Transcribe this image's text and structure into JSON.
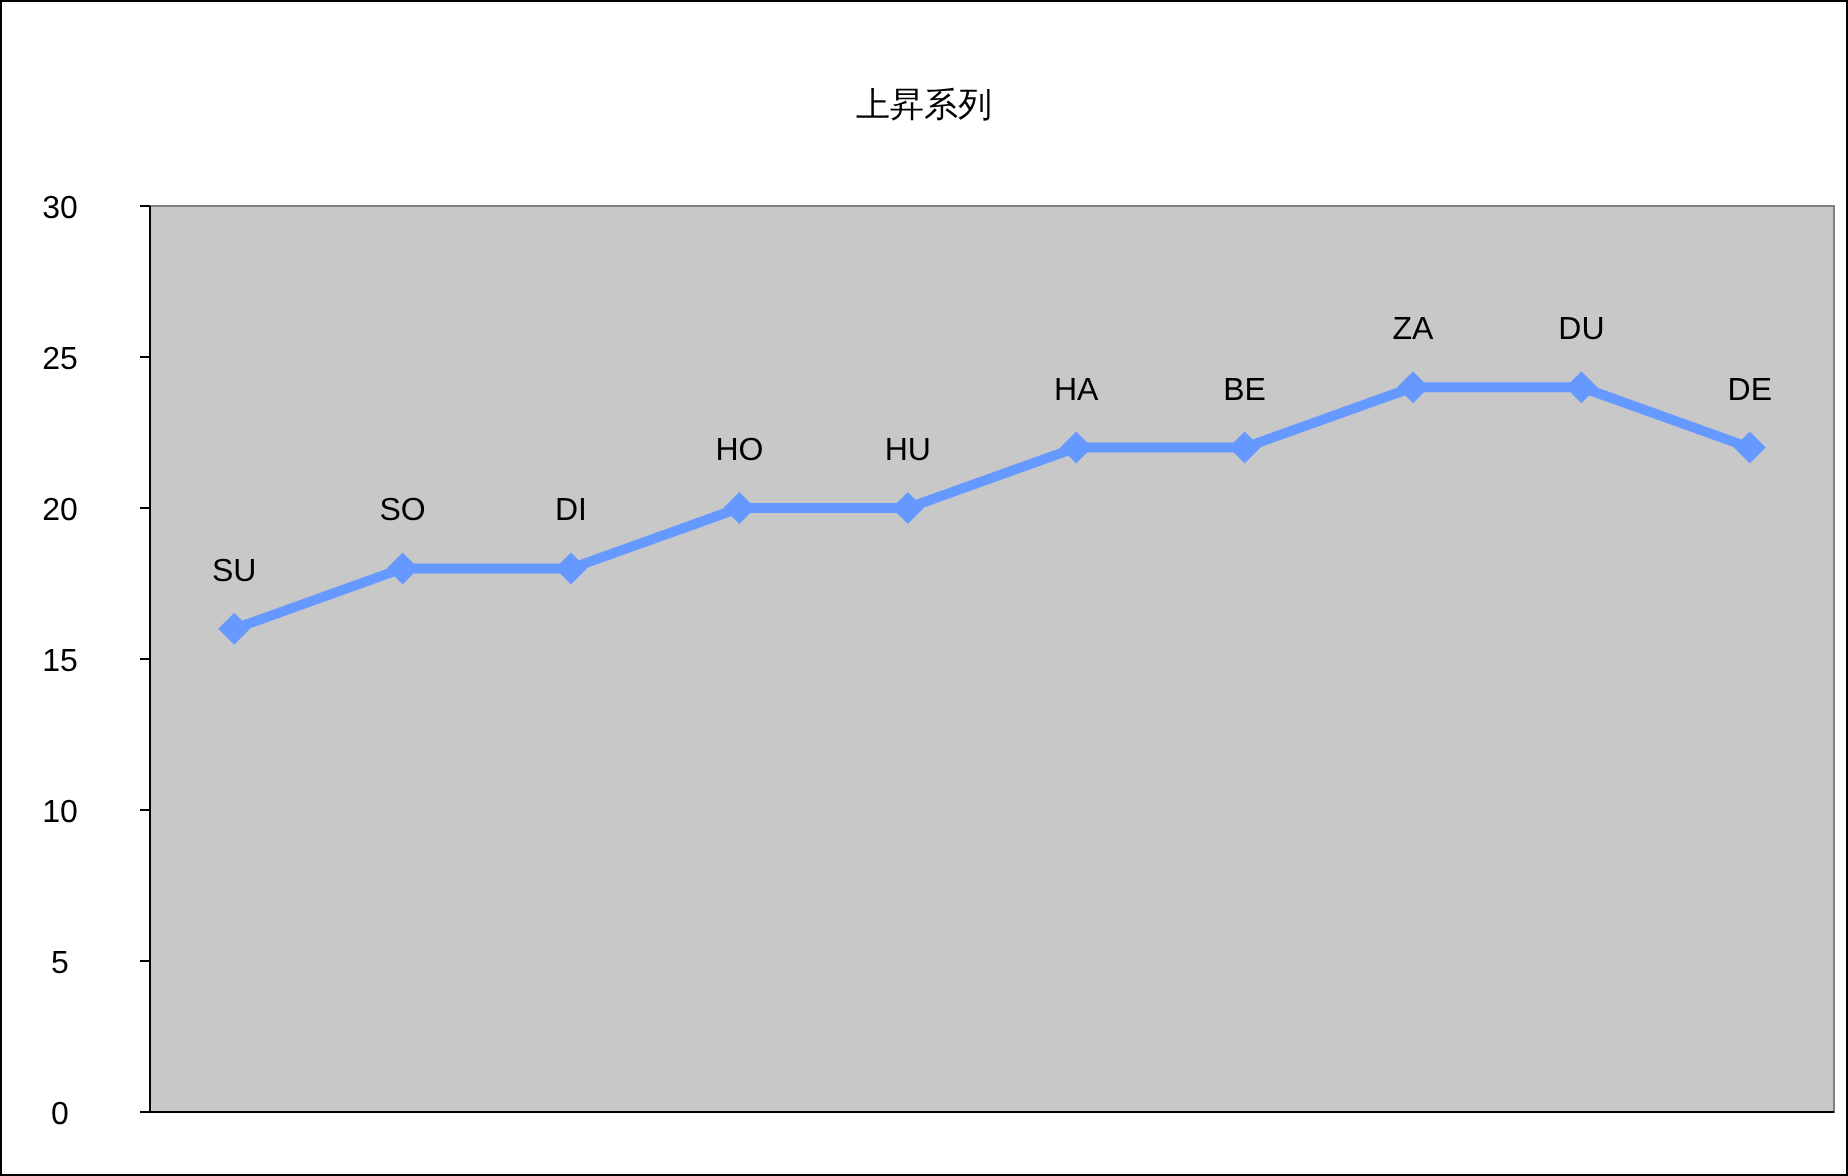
{
  "chart_data": {
    "type": "line",
    "title": "上昇系列",
    "categories": [
      "SU",
      "SO",
      "DI",
      "HO",
      "HU",
      "HA",
      "BE",
      "ZA",
      "DU",
      "DE"
    ],
    "values": [
      16,
      18,
      18,
      20,
      20,
      22,
      22,
      24,
      24,
      22
    ],
    "color": "#6699ff",
    "marker": "diamond",
    "line_style": "solid",
    "ylim": [
      0,
      30
    ],
    "yticks": [
      0,
      5,
      10,
      15,
      20,
      25,
      30
    ]
  }
}
